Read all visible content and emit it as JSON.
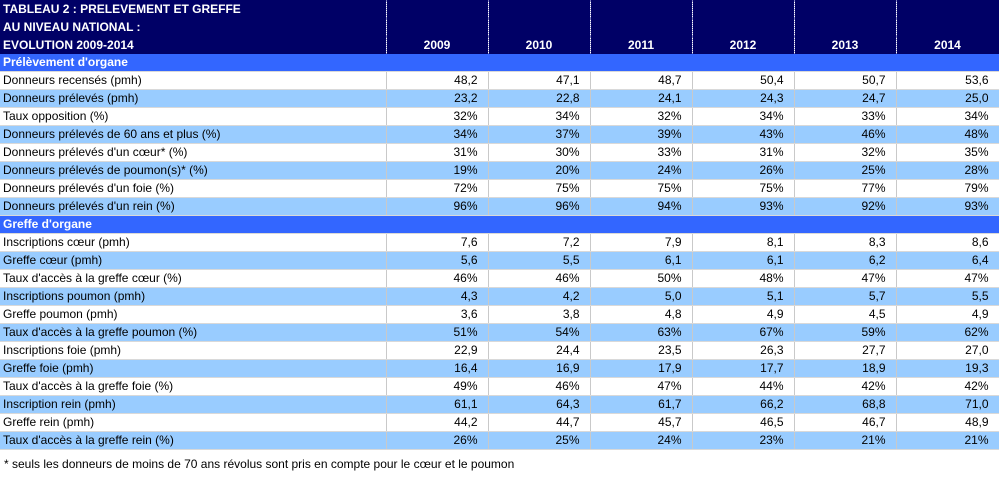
{
  "title_lines": [
    "TABLEAU 2 : PRELEVEMENT ET GREFFE",
    "AU NIVEAU NATIONAL :",
    "EVOLUTION 2009-2014"
  ],
  "years": [
    "2009",
    "2010",
    "2011",
    "2012",
    "2013",
    "2014"
  ],
  "sections": [
    {
      "name": "Prélèvement d'organe",
      "rows": [
        {
          "label": "Donneurs recensés (pmh)",
          "values": [
            "48,2",
            "47,1",
            "48,7",
            "50,4",
            "50,7",
            "53,6"
          ],
          "shade": "plain"
        },
        {
          "label": "Donneurs prélevés (pmh)",
          "values": [
            "23,2",
            "22,8",
            "24,1",
            "24,3",
            "24,7",
            "25,0"
          ],
          "shade": "alt"
        },
        {
          "label": "Taux opposition (%)",
          "values": [
            "32%",
            "34%",
            "32%",
            "34%",
            "33%",
            "34%"
          ],
          "shade": "plain"
        },
        {
          "label": "Donneurs prélevés de 60 ans et plus (%)",
          "values": [
            "34%",
            "37%",
            "39%",
            "43%",
            "46%",
            "48%"
          ],
          "shade": "alt"
        },
        {
          "label": "Donneurs prélevés d'un cœur* (%)",
          "values": [
            "31%",
            "30%",
            "33%",
            "31%",
            "32%",
            "35%"
          ],
          "shade": "plain"
        },
        {
          "label": "Donneurs prélevés de poumon(s)* (%)",
          "values": [
            "19%",
            "20%",
            "24%",
            "26%",
            "25%",
            "28%"
          ],
          "shade": "alt"
        },
        {
          "label": "Donneurs prélevés d'un foie (%)",
          "values": [
            "72%",
            "75%",
            "75%",
            "75%",
            "77%",
            "79%"
          ],
          "shade": "plain"
        },
        {
          "label": "Donneurs prélevés d'un rein (%)",
          "values": [
            "96%",
            "96%",
            "94%",
            "93%",
            "92%",
            "93%"
          ],
          "shade": "alt"
        }
      ]
    },
    {
      "name": "Greffe d'organe",
      "rows": [
        {
          "label": "Inscriptions cœur (pmh)",
          "values": [
            "7,6",
            "7,2",
            "7,9",
            "8,1",
            "8,3",
            "8,6"
          ],
          "shade": "plain"
        },
        {
          "label": "Greffe cœur (pmh)",
          "values": [
            "5,6",
            "5,5",
            "6,1",
            "6,1",
            "6,2",
            "6,4"
          ],
          "shade": "alt"
        },
        {
          "label": "Taux d'accès à la greffe cœur (%)",
          "values": [
            "46%",
            "46%",
            "50%",
            "48%",
            "47%",
            "47%"
          ],
          "shade": "plain"
        },
        {
          "label": "Inscriptions poumon (pmh)",
          "values": [
            "4,3",
            "4,2",
            "5,0",
            "5,1",
            "5,7",
            "5,5"
          ],
          "shade": "alt"
        },
        {
          "label": "Greffe poumon (pmh)",
          "values": [
            "3,6",
            "3,8",
            "4,8",
            "4,9",
            "4,5",
            "4,9"
          ],
          "shade": "plain"
        },
        {
          "label": "Taux d'accès à la greffe poumon (%)",
          "values": [
            "51%",
            "54%",
            "63%",
            "67%",
            "59%",
            "62%"
          ],
          "shade": "alt"
        },
        {
          "label": "Inscriptions foie (pmh)",
          "values": [
            "22,9",
            "24,4",
            "23,5",
            "26,3",
            "27,7",
            "27,0"
          ],
          "shade": "plain"
        },
        {
          "label": "Greffe foie (pmh)",
          "values": [
            "16,4",
            "16,9",
            "17,9",
            "17,7",
            "18,9",
            "19,3"
          ],
          "shade": "alt"
        },
        {
          "label": "Taux d'accès à la greffe foie (%)",
          "values": [
            "49%",
            "46%",
            "47%",
            "44%",
            "42%",
            "42%"
          ],
          "shade": "plain"
        },
        {
          "label": "Inscription rein (pmh)",
          "values": [
            "61,1",
            "64,3",
            "61,7",
            "66,2",
            "68,8",
            "71,0"
          ],
          "shade": "alt"
        },
        {
          "label": "Greffe rein (pmh)",
          "values": [
            "44,2",
            "44,7",
            "45,7",
            "46,5",
            "46,7",
            "48,9"
          ],
          "shade": "plain"
        },
        {
          "label": "Taux d'accès à la greffe rein (%)",
          "values": [
            "26%",
            "25%",
            "24%",
            "23%",
            "21%",
            "21%"
          ],
          "shade": "alt"
        }
      ]
    }
  ],
  "footnote": "* seuls les donneurs de moins de 70 ans révolus sont pris en compte pour  le cœur et le poumon",
  "colors": {
    "header_bg": "#000066",
    "section_bg": "#3366ff",
    "alt_row_bg": "#99ccff"
  }
}
